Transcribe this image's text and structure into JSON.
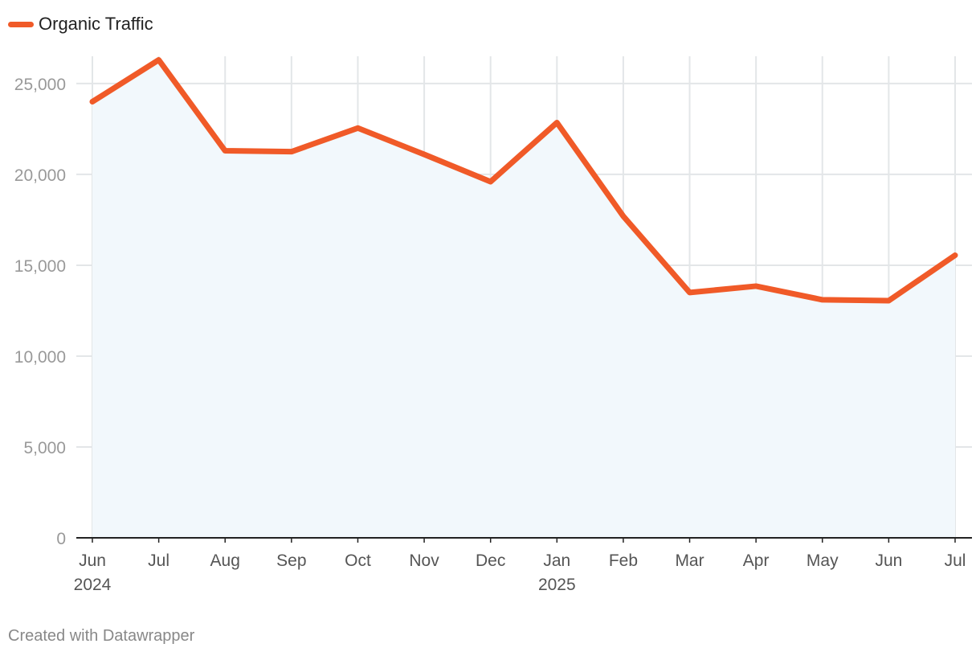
{
  "chart_data": {
    "type": "area",
    "title": "",
    "xlabel": "",
    "ylabel": "",
    "categories": [
      "Jun",
      "Jul",
      "Aug",
      "Sep",
      "Oct",
      "Nov",
      "Dec",
      "Jan",
      "Feb",
      "Mar",
      "Apr",
      "May",
      "Jun",
      "Jul"
    ],
    "year_labels": [
      "2024",
      "",
      "",
      "",
      "",
      "",
      "",
      "2025",
      "",
      "",
      "",
      "",
      "",
      ""
    ],
    "series": [
      {
        "name": "Organic Traffic",
        "color": "#f05a28",
        "values": [
          24000,
          26300,
          21300,
          21250,
          22550,
          21100,
          19600,
          22850,
          17700,
          13500,
          13850,
          13100,
          13050,
          15550
        ]
      }
    ],
    "ylim": [
      0,
      26500
    ],
    "yticks": [
      0,
      5000,
      10000,
      15000,
      20000,
      25000
    ],
    "ytick_labels": [
      "0",
      "5,000",
      "10,000",
      "15,000",
      "20,000",
      "25,000"
    ],
    "area_fill": "#f2f8fc",
    "grid": true,
    "legend_position": "top-left"
  },
  "footer": {
    "credit": "Created with Datawrapper"
  }
}
